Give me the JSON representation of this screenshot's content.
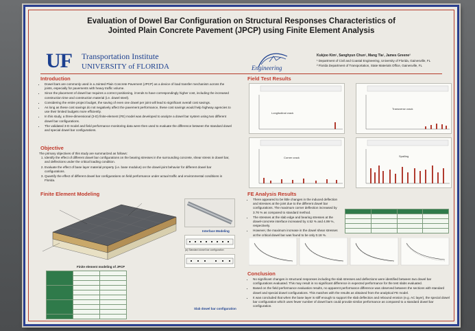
{
  "poster": {
    "title_line1": "Evaluation of Dowel Bar Configuration on Structural Responses Characteristics of",
    "title_line2": "Jointed Plain Concrete Pavement (JPCP) using Finite Element Analysis",
    "logo_letters": "UF",
    "institute_name": "Transportation Institute",
    "university": "UNIVERSITY of FLORIDA",
    "engineering_logo": "Engineering",
    "authors": "Kukjoo Kim¹, Sanghyun Chun¹, Mang Tia¹, James Greene²",
    "affil1": "¹ Department of Civil and Coastal Engineering, University of Florida, Gainesville, FL",
    "affil2": "² Florida Department of Transportation, State Materials Office, Gainesville, FL"
  },
  "intro": {
    "heading": "Introduction",
    "bullets": [
      "Dowel bars are commonly used in a Jointed Plain Concrete Pavement (JPCP) as a device of load transfer mechanism across the joints, especially for pavements with heavy traffic volume.",
      "Since the placement of dowel bar requires a correct positioning, it tends to have correspondingly higher cost, including the increased construction time and construction material (i.e. dowel steel).",
      "Considering the entire project budget, the saving of even one dowel per joint will lead to significant overall cost savings.",
      "As long as these cost savings do not negatively affect the pavement performance, these cost savings would help highway agencies to use their limited budgets more efficiently.",
      "In this study, a three-dimensional (3-D) finite-element (FE) model was developed to analyze a dowel bar system using two different dowel bar configurations.",
      "The validated 3-D model and field performance monitoring data were then used to evaluate the difference between the standard dowel and special dowel bar configurations."
    ]
  },
  "objective": {
    "heading": "Objective",
    "lead": "The primary objectives of this study are summarized as follows:",
    "items": [
      "Identify the effect of different dowel bar configurations on the bearing stresses in the surrounding concrete, shear stress in dowel bar, and deflections under the critical loading condition.",
      "Evaluate the effect of base layer material property (i.e. base modulus) on the dowel-joint behavior for different dowel bar configurations.",
      "Quantify the effect of different dowel bar configurations on field performance under actual traffic and environmental conditions in Florida."
    ]
  },
  "fe_modeling": {
    "heading": "Finite Element Modeling",
    "interface_label": "Interface Modeling",
    "model_caption": "Finite element modeling of JPCP",
    "std_label": "(a) Standard dowel bar configuration",
    "slab_caption": "Slab dowel bar configuration"
  },
  "field_results": {
    "heading": "Field Test Results",
    "charts": [
      {
        "title": "Longitudinal crack"
      },
      {
        "title": "Transverse crack"
      },
      {
        "title": "Corner crack"
      },
      {
        "title": "Spalling"
      }
    ]
  },
  "fe_analysis": {
    "heading": "FE Analysis Results",
    "bullets": [
      "There appeared to be little changes in the induced deflection and stresses at the joint due to the different dowel bar configurations. The maximum corner deflection increased by 3.76 % as compared to standard method.",
      "The stresses at the slab edge and bearing stresses at the dowel-concrete interface increased by 4.52 % and 4.99 %, respectively.",
      "However, the maximum increase in the dowel shear stresses at the critical dowel bar was found to be only 0.18 %."
    ]
  },
  "conclusion": {
    "heading": "Conclusion",
    "bullets": [
      "No significant changes in structural responses including the slab stresses and deflections were identified between two dowel bar configurations evaluated. This may result in no significant difference in expected performance for the test slabs evaluated.",
      "Based on the field performance evaluation results, no apparent performance difference was observed between the sections with standard dowel and special dowel configurations. This matches with the results as obtained from the analytical FE model.",
      "It was concluded that when the base layer is stiff enough to support the slab deflection and rebound erosion (e.g. AC layer), the special dowel bar configuration which uses fewer number of dowel bars could provide similar performance as compared to a standard dowel bar configuration."
    ]
  },
  "colors": {
    "frame_blue": "#2a3f8f",
    "heading_red": "#c0392b",
    "uf_orange": "#e06b1f",
    "bar_red": "#b03a2e",
    "table_green": "#2f7a4a"
  }
}
